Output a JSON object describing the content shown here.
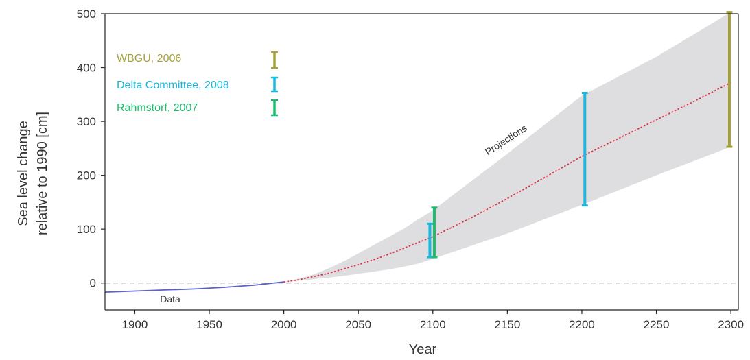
{
  "chart_data": {
    "type": "line",
    "xlabel": "Year",
    "ylabel_lines": [
      "Sea level change",
      "relative to 1990 [cm]"
    ],
    "xlim": [
      1880,
      2305
    ],
    "ylim": [
      -50,
      500
    ],
    "xticks": [
      1900,
      1950,
      2000,
      2050,
      2100,
      2150,
      2200,
      2250,
      2300
    ],
    "yticks": [
      0,
      100,
      200,
      300,
      400,
      500
    ],
    "grid": false,
    "reference_line": {
      "y": 0,
      "style": "dashed",
      "color": "#aaaaaa"
    },
    "series": [
      {
        "label": "Data",
        "color": "#5b63c9",
        "style": "solid",
        "x": [
          1880,
          1900,
          1920,
          1940,
          1960,
          1970,
          1980,
          1990,
          2000
        ],
        "y": [
          -17,
          -15,
          -13,
          -11,
          -8,
          -6,
          -4,
          -1,
          2
        ]
      },
      {
        "label": "Projections",
        "color": "#e0304a",
        "style": "dotted",
        "x": [
          2000,
          2010,
          2020,
          2030,
          2040,
          2050,
          2060,
          2070,
          2080,
          2090,
          2100,
          2125,
          2150,
          2175,
          2200,
          2225,
          2250,
          2275,
          2300
        ],
        "y": [
          2,
          6,
          12,
          18,
          26,
          34,
          43,
          53,
          64,
          75,
          86,
          120,
          157,
          196,
          235,
          269,
          303,
          337,
          372
        ]
      }
    ],
    "projection_band": {
      "color": "#dedee0",
      "x": [
        2000,
        2010,
        2020,
        2030,
        2040,
        2050,
        2060,
        2070,
        2080,
        2090,
        2100,
        2150,
        2200,
        2250,
        2300
      ],
      "lower": [
        2,
        4,
        7,
        10,
        13,
        17,
        21,
        25,
        30,
        36,
        45,
        92,
        145,
        200,
        253
      ],
      "upper": [
        2,
        8,
        16,
        27,
        40,
        55,
        70,
        85,
        100,
        118,
        135,
        240,
        348,
        420,
        503
      ]
    },
    "error_bars": [
      {
        "source": "Delta Committee, 2008",
        "color": "#1ab6dc",
        "x": 2098,
        "low": 48,
        "high": 110
      },
      {
        "source": "Rahmstorf, 2007",
        "color": "#1cbd6e",
        "x": 2101,
        "low": 48,
        "high": 140
      },
      {
        "source": "Delta Committee, 2008",
        "color": "#1ab6dc",
        "x": 2202,
        "low": 144,
        "high": 353
      },
      {
        "source": "WBGU, 2006",
        "color": "#a6a23a",
        "x": 2299,
        "low": 253,
        "high": 503
      }
    ],
    "legend": {
      "placement": "top-left",
      "entries": [
        {
          "label": "WBGU, 2006",
          "color": "#a6a23a"
        },
        {
          "label": "Delta Committee, 2008",
          "color": "#1ab6dc"
        },
        {
          "label": "Rahmstorf, 2007",
          "color": "#1cbd6e"
        }
      ]
    },
    "annotations": [
      {
        "text": "Projections",
        "x": 2140,
        "y": 245,
        "rotation_deg": -33
      },
      {
        "text": "Data",
        "x": 1948,
        "y": -33,
        "rotation_deg": 0
      }
    ]
  }
}
